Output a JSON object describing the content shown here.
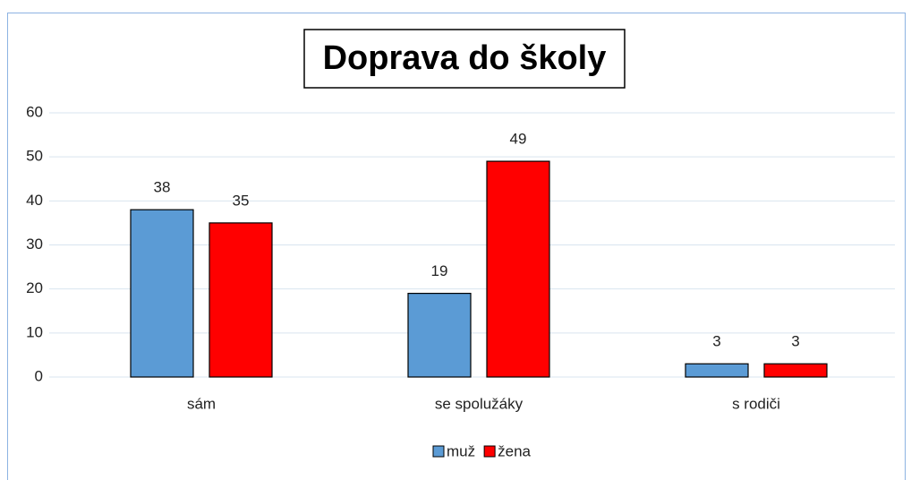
{
  "chart_data": {
    "type": "bar",
    "title": "Doprava do školy",
    "categories": [
      "sám",
      "se spolužáky",
      "s rodiči"
    ],
    "series": [
      {
        "name": "muž",
        "color": "#5b9bd5",
        "values": [
          38,
          19,
          3
        ]
      },
      {
        "name": "žena",
        "color": "#ff0000",
        "values": [
          35,
          49,
          3
        ]
      }
    ],
    "ylim": [
      0,
      60
    ],
    "yticks": [
      0,
      10,
      20,
      30,
      40,
      50,
      60
    ],
    "grid": true,
    "legend": "bottom"
  }
}
